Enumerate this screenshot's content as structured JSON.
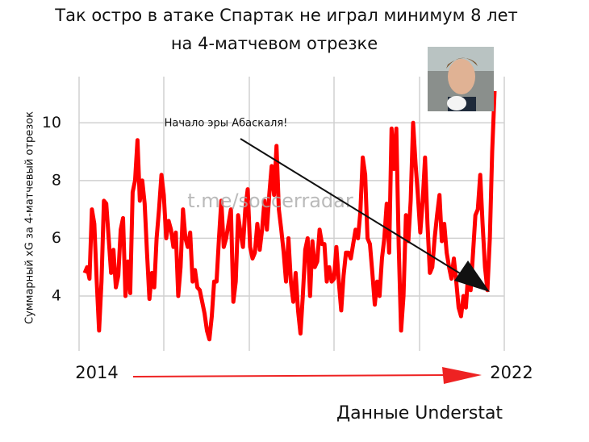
{
  "chart_data": {
    "type": "line",
    "title": [
      "Так остро в атаке Спартак не играл минимум 8 лет",
      "на 4-матчевом отрезке"
    ],
    "y_label": "Суммарный xG за 4-матчевый отрезок",
    "source": "Данные Understat",
    "watermark": "t.me/soccerradar",
    "annotation": "Начало эры Абаскаля!",
    "x_labels": [
      "2014",
      "2022"
    ],
    "ylim": [
      2.1,
      11.6
    ],
    "yticks": [
      4,
      6,
      8,
      10
    ],
    "grid": true,
    "series": [
      {
        "name": "xG",
        "color": "#ff0000",
        "values": [
          4.8,
          5.0,
          4.6,
          7.0,
          6.5,
          4.5,
          2.8,
          4.5,
          7.3,
          7.2,
          6.0,
          4.8,
          5.6,
          4.3,
          4.7,
          6.3,
          6.7,
          4.0,
          5.2,
          4.1,
          7.6,
          8.0,
          9.4,
          7.3,
          8.0,
          7.2,
          5.5,
          3.9,
          4.8,
          4.3,
          6.0,
          7.0,
          8.2,
          7.5,
          6.0,
          6.6,
          6.3,
          5.7,
          6.2,
          4.0,
          5.0,
          7.0,
          6.0,
          5.7,
          6.2,
          4.5,
          4.9,
          4.3,
          4.2,
          3.8,
          3.4,
          2.8,
          2.5,
          3.3,
          4.5,
          4.5,
          6.0,
          7.3,
          5.7,
          6.0,
          6.5,
          7.0,
          3.8,
          4.5,
          6.8,
          6.2,
          5.7,
          7.0,
          7.7,
          5.7,
          5.3,
          5.5,
          6.5,
          5.6,
          6.3,
          7.3,
          6.3,
          7.5,
          8.5,
          7.5,
          9.2,
          7.0,
          6.3,
          5.5,
          4.5,
          6.0,
          4.5,
          3.8,
          4.8,
          3.5,
          2.7,
          4.0,
          5.6,
          6.0,
          4.0,
          5.9,
          5.0,
          5.2,
          6.3,
          5.8,
          5.8,
          4.5,
          5.0,
          4.5,
          4.6,
          5.7,
          4.5,
          3.5,
          4.7,
          5.5,
          5.5,
          5.3,
          5.8,
          6.3,
          6.0,
          6.9,
          8.8,
          8.2,
          6.0,
          5.8,
          4.8,
          3.7,
          4.5,
          4.0,
          5.3,
          6.0,
          7.2,
          5.5,
          9.8,
          8.4,
          9.8,
          5.7,
          2.8,
          4.0,
          6.8,
          5.9,
          7.3,
          10.0,
          8.6,
          7.5,
          6.2,
          7.3,
          8.8,
          6.5,
          4.8,
          5.0,
          6.0,
          6.8,
          7.5,
          5.9,
          6.5,
          5.5,
          5.0,
          4.6,
          5.3,
          4.5,
          3.6,
          3.3,
          4.0,
          3.6,
          4.8,
          4.2,
          5.5,
          6.8,
          7.0,
          8.2,
          6.5,
          5.0,
          4.2,
          6.0,
          9.0,
          11.1
        ]
      }
    ]
  }
}
